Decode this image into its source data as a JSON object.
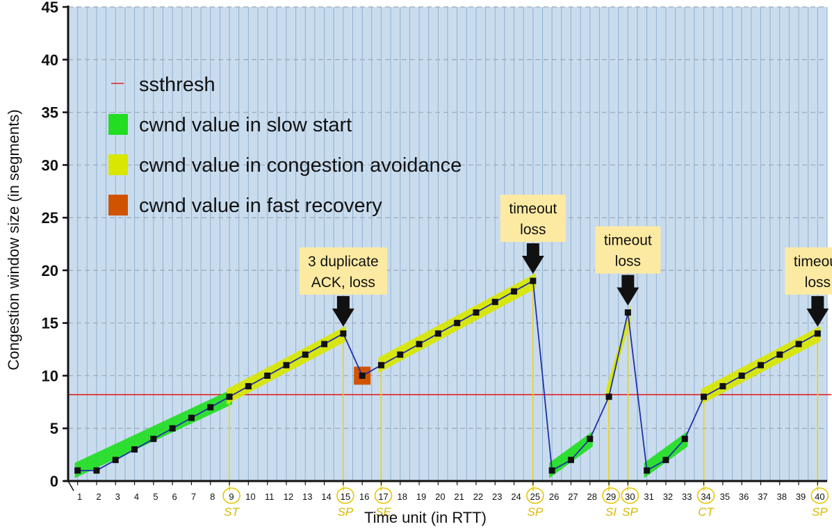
{
  "chart_data": {
    "type": "line",
    "title": "",
    "xlabel": "Time unit (in RTT)",
    "ylabel": "Congestion window size (in segments)",
    "xlim": [
      0.5,
      40.5
    ],
    "ylim": [
      0,
      45
    ],
    "yticks": [
      0,
      5,
      10,
      15,
      20,
      25,
      30,
      35,
      40,
      45
    ],
    "xticks": [
      1,
      2,
      3,
      4,
      5,
      6,
      7,
      8,
      9,
      10,
      11,
      12,
      13,
      14,
      15,
      16,
      17,
      18,
      19,
      20,
      21,
      22,
      23,
      24,
      25,
      26,
      27,
      28,
      29,
      30,
      31,
      32,
      33,
      34,
      35,
      36,
      37,
      38,
      39,
      40
    ],
    "grid": true,
    "legend_position": "top-left",
    "series": [
      {
        "name": "cwnd",
        "color": "#1f2fa8",
        "marker_color": "#111111",
        "x": [
          1,
          2,
          3,
          4,
          5,
          6,
          7,
          8,
          9,
          10,
          11,
          12,
          13,
          14,
          15,
          16,
          17,
          18,
          19,
          20,
          21,
          22,
          23,
          24,
          25,
          26,
          27,
          28,
          29,
          30,
          31,
          32,
          33,
          34,
          35,
          36,
          37,
          38,
          39,
          40
        ],
        "y": [
          1,
          1,
          2,
          3,
          4,
          5,
          6,
          7,
          8,
          9,
          10,
          11,
          12,
          13,
          14,
          10,
          11,
          12,
          13,
          14,
          15,
          16,
          17,
          18,
          19,
          1,
          2,
          4,
          8,
          16,
          1,
          2,
          4,
          8,
          9,
          10,
          11,
          12,
          13,
          14
        ]
      },
      {
        "name": "ssthresh",
        "color": "#e02020",
        "y_value": 8.2
      }
    ],
    "legend": [
      {
        "label": "ssthresh",
        "color": "#e02020",
        "kind": "line"
      },
      {
        "label": "cwnd value in slow start",
        "color": "#22dd22",
        "kind": "swatch"
      },
      {
        "label": "cwnd value in congestion avoidance",
        "color": "#d8e600",
        "kind": "swatch"
      },
      {
        "label": "cwnd value in fast recovery",
        "color": "#d05400",
        "kind": "swatch"
      }
    ],
    "phases": [
      {
        "phase": "slow start",
        "from": 1,
        "to": 9,
        "color": "#22dd22"
      },
      {
        "phase": "congestion avoidance",
        "from": 9,
        "to": 15,
        "color": "#d8e600"
      },
      {
        "phase": "fast recovery",
        "from": 16,
        "to": 16,
        "color": "#d05400"
      },
      {
        "phase": "congestion avoidance",
        "from": 17,
        "to": 25,
        "color": "#d8e600"
      },
      {
        "phase": "slow start",
        "from": 26,
        "to": 28,
        "color": "#22dd22"
      },
      {
        "phase": "congestion avoidance",
        "from": 29,
        "to": 30,
        "color": "#d8e600"
      },
      {
        "phase": "slow start",
        "from": 31,
        "to": 33,
        "color": "#22dd22"
      },
      {
        "phase": "congestion avoidance",
        "from": 34,
        "to": 40,
        "color": "#d8e600"
      }
    ],
    "annotations": [
      {
        "lines": [
          "3 duplicate",
          "ACK, loss"
        ],
        "x": 15,
        "y": 14
      },
      {
        "lines": [
          "timeout",
          "loss"
        ],
        "x": 25,
        "y": 19
      },
      {
        "lines": [
          "timeout",
          "loss"
        ],
        "x": 30,
        "y": 16
      },
      {
        "lines": [
          "timeout",
          "loss"
        ],
        "x": 40,
        "y": 14
      }
    ],
    "marked_x": [
      9,
      15,
      17,
      25,
      29,
      30,
      34,
      40
    ],
    "handwritten_notes": [
      {
        "x": 9,
        "text": "ST"
      },
      {
        "x": 15,
        "text": "SP"
      },
      {
        "x": 17,
        "text": "SE"
      },
      {
        "x": 25,
        "text": "SP"
      },
      {
        "x": 29,
        "text": "SI"
      },
      {
        "x": 30,
        "text": "SP"
      },
      {
        "x": 34,
        "text": "CT"
      },
      {
        "x": 40,
        "text": "SP"
      }
    ]
  }
}
